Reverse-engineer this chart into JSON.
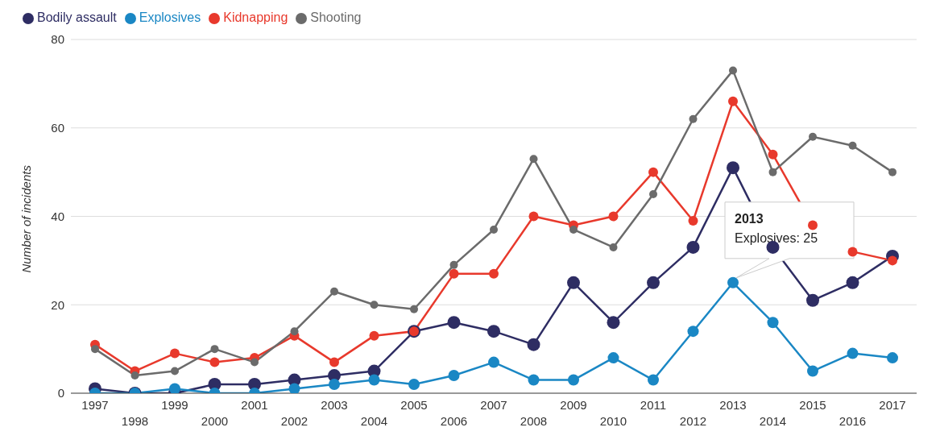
{
  "chart_data": {
    "type": "line",
    "ylabel": "Number of incidents",
    "categories": [
      "1997",
      "1998",
      "1999",
      "2000",
      "2001",
      "2002",
      "2003",
      "2004",
      "2005",
      "2006",
      "2007",
      "2008",
      "2009",
      "2010",
      "2011",
      "2012",
      "2013",
      "2014",
      "2015",
      "2016",
      "2017"
    ],
    "series": [
      {
        "name": "Bodily assault",
        "color": "#2e2d63",
        "values": [
          1,
          0,
          0,
          2,
          2,
          3,
          4,
          5,
          14,
          16,
          14,
          11,
          25,
          16,
          25,
          33,
          51,
          33,
          21,
          25,
          31
        ]
      },
      {
        "name": "Explosives",
        "color": "#1a87c4",
        "values": [
          0,
          0,
          1,
          0,
          0,
          1,
          2,
          3,
          2,
          4,
          7,
          3,
          3,
          8,
          3,
          14,
          25,
          16,
          5,
          9,
          8
        ]
      },
      {
        "name": "Kidnapping",
        "color": "#e8392c",
        "values": [
          11,
          5,
          9,
          7,
          8,
          13,
          7,
          13,
          14,
          27,
          27,
          40,
          38,
          40,
          50,
          39,
          66,
          54,
          38,
          32,
          30
        ]
      },
      {
        "name": "Shooting",
        "color": "#6b6b6b",
        "values": [
          10,
          4,
          5,
          10,
          7,
          14,
          23,
          20,
          19,
          29,
          37,
          53,
          37,
          33,
          45,
          62,
          73,
          50,
          58,
          56,
          50
        ]
      }
    ],
    "ylim": [
      0,
      80
    ],
    "yticks": [
      0,
      20,
      40,
      60,
      80
    ],
    "grid": "y",
    "legend": "top left",
    "marker": "circle",
    "line_style": "solid",
    "annotations": [
      {
        "text": "2013\nExplosives: 25",
        "x": "2013",
        "y": 25
      }
    ]
  }
}
